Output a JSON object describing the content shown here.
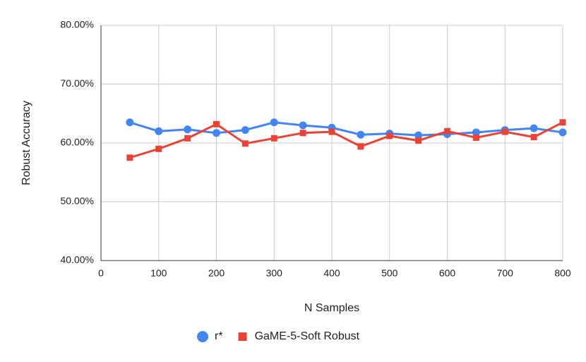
{
  "chart_data": {
    "type": "line",
    "x_label": "N Samples",
    "y_label": "Robust Accuracy",
    "x": [
      50,
      100,
      150,
      200,
      250,
      300,
      350,
      400,
      450,
      500,
      550,
      600,
      650,
      700,
      750,
      800
    ],
    "series": [
      {
        "name": "r*",
        "color": "#4285f4",
        "marker": "circle",
        "values": [
          63.5,
          62.0,
          62.3,
          61.7,
          62.2,
          63.5,
          63.0,
          62.6,
          61.4,
          61.6,
          61.3,
          61.5,
          61.8,
          62.2,
          62.5,
          61.8
        ]
      },
      {
        "name": "GaME-5-Soft Robust",
        "color": "#ea4335",
        "marker": "square",
        "values": [
          57.5,
          59.0,
          60.8,
          63.2,
          59.9,
          60.8,
          61.7,
          61.9,
          59.4,
          61.2,
          60.4,
          62.0,
          60.9,
          61.9,
          61.0,
          63.5
        ]
      }
    ],
    "xlim": [
      0,
      800
    ],
    "xticks": [
      0,
      100,
      200,
      300,
      400,
      500,
      600,
      700,
      800
    ],
    "ylim": [
      40,
      80
    ],
    "yticks": [
      {
        "value": 40,
        "label": "40.00%"
      },
      {
        "value": 50,
        "label": "50.00%"
      },
      {
        "value": 60,
        "label": "60.00%"
      },
      {
        "value": 70,
        "label": "70.00%"
      },
      {
        "value": 80,
        "label": "80.00%"
      }
    ],
    "grid": true,
    "legend": "bottom"
  }
}
